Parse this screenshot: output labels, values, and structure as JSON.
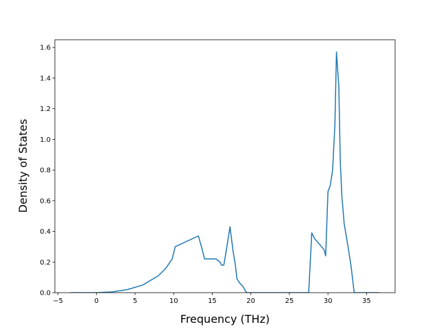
{
  "chart_data": {
    "type": "line",
    "xlabel": "Frequency (THz)",
    "ylabel": "Density of States",
    "color": "#1f77b4",
    "x": [
      -3.4,
      0,
      2,
      4,
      6,
      8,
      9,
      9.8,
      10.2,
      13.2,
      13.6,
      14.0,
      15,
      15.5,
      16.0,
      16.2,
      16.5,
      16.8,
      17.3,
      17.7,
      18.0,
      18.2,
      18.6,
      19.0,
      19.3,
      19.5,
      27.5,
      27.9,
      28.3,
      29.0,
      29.5,
      29.7,
      30.0,
      30.3,
      30.6,
      30.9,
      31.1,
      31.4,
      31.6,
      31.8,
      32.1,
      32.6,
      33.0,
      33.4,
      36.7
    ],
    "values": [
      0,
      0,
      0.005,
      0.02,
      0.05,
      0.11,
      0.16,
      0.22,
      0.3,
      0.37,
      0.3,
      0.22,
      0.22,
      0.22,
      0.2,
      0.18,
      0.18,
      0.27,
      0.43,
      0.27,
      0.18,
      0.09,
      0.06,
      0.04,
      0.01,
      0,
      0,
      0.39,
      0.35,
      0.31,
      0.28,
      0.24,
      0.66,
      0.7,
      0.8,
      1.1,
      1.57,
      1.35,
      0.85,
      0.63,
      0.45,
      0.3,
      0.17,
      0,
      0
    ],
    "xlim": [
      -5.4,
      38.7
    ],
    "ylim": [
      0,
      1.65
    ],
    "xticks": [
      {
        "value": -5,
        "label": "−5"
      },
      0,
      5,
      10,
      15,
      20,
      25,
      30,
      35
    ],
    "yticks": [
      {
        "value": 0,
        "label": "0.0"
      },
      0.2,
      0.4,
      0.6,
      0.8,
      {
        "value": 1.0,
        "label": "1.0"
      },
      1.2,
      1.4,
      1.6
    ]
  }
}
